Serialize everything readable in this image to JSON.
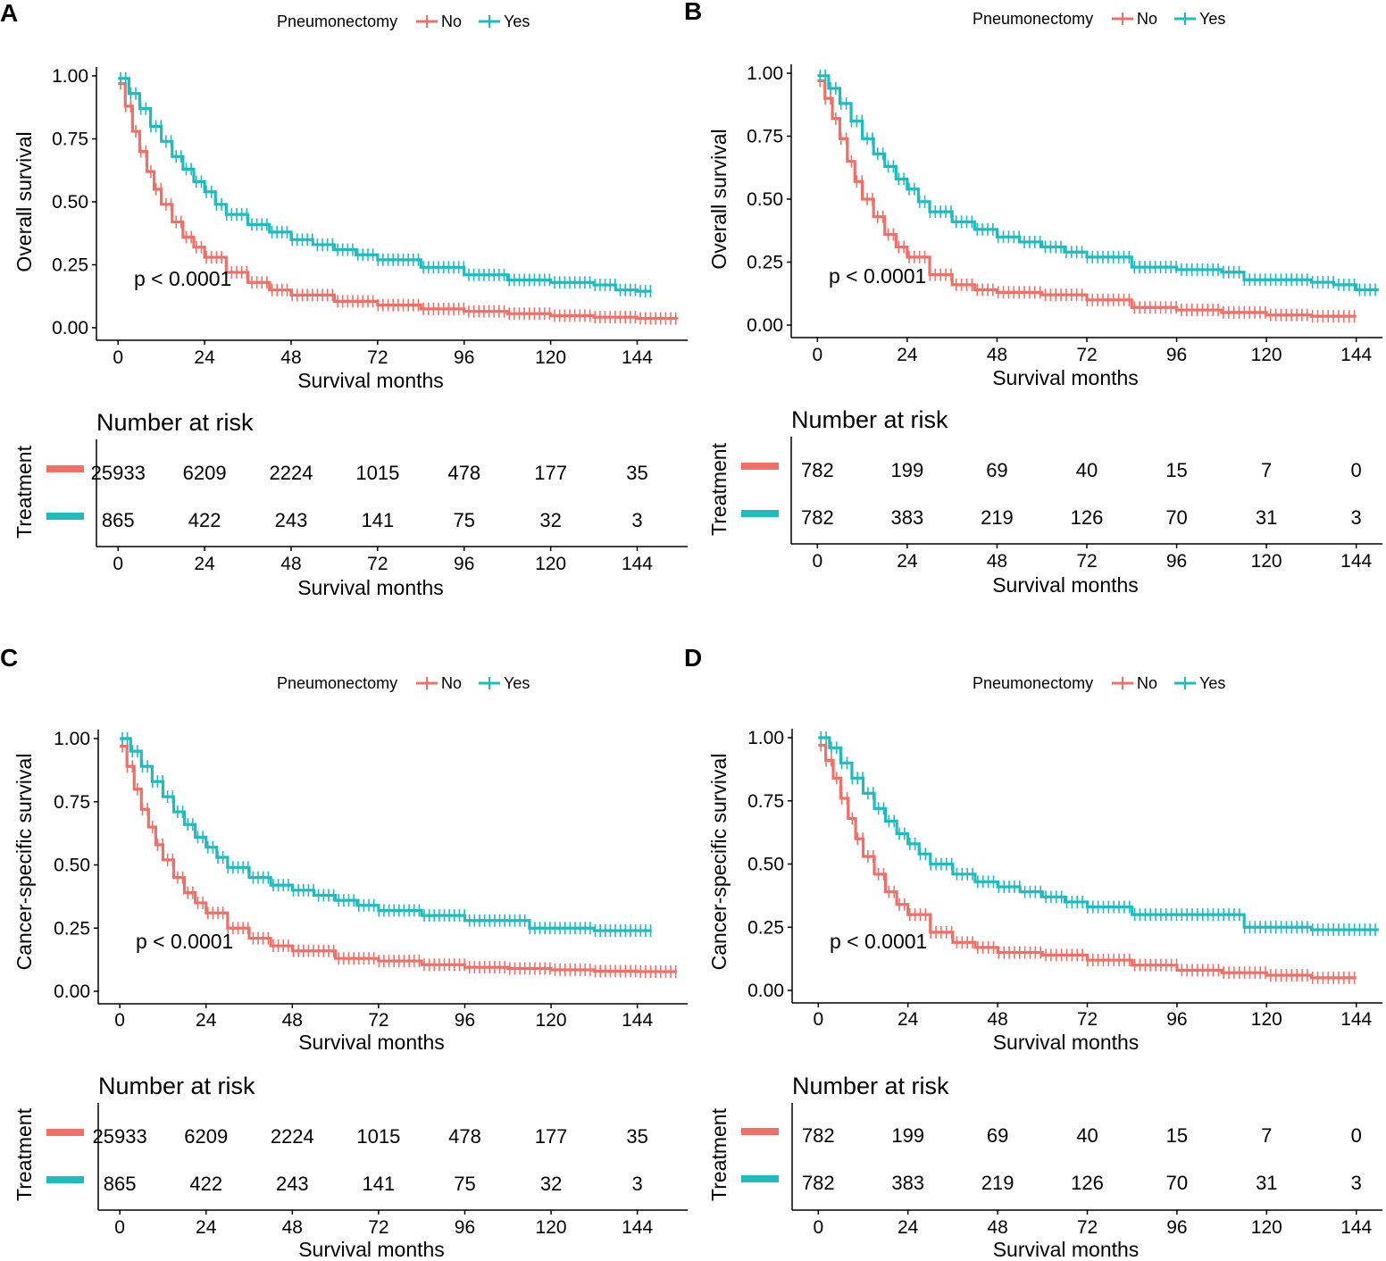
{
  "figure": {
    "legend_title": "Pneumonectomy",
    "risk_table_title": "Number at risk",
    "risk_table_ylabel": "Treatment",
    "colors": {
      "No": "#f07068",
      "Yes": "#1fbcbe"
    }
  },
  "chart_data": [
    {
      "panel": "A",
      "type": "line",
      "title": "",
      "xlabel": "Survival months",
      "ylabel": "Overall survival",
      "xlim": [
        -6,
        158
      ],
      "ylim": [
        0,
        1
      ],
      "xticks": [
        0,
        24,
        48,
        72,
        96,
        120,
        144
      ],
      "yticks": [
        "0.00",
        "0.25",
        "0.50",
        "0.75",
        "1.00"
      ],
      "annotation": "p < 0.0001",
      "legend": [
        "No",
        "Yes"
      ],
      "legend_position": "top",
      "series": [
        {
          "name": "No",
          "end_x": 155,
          "x": [
            0,
            2,
            4,
            6,
            8,
            10,
            12,
            15,
            18,
            21,
            24,
            30,
            36,
            42,
            48,
            60,
            72,
            84,
            96,
            108,
            120,
            132,
            144,
            155
          ],
          "y": [
            0.97,
            0.88,
            0.78,
            0.7,
            0.62,
            0.55,
            0.49,
            0.42,
            0.36,
            0.32,
            0.28,
            0.22,
            0.18,
            0.15,
            0.13,
            0.105,
            0.09,
            0.075,
            0.065,
            0.056,
            0.048,
            0.042,
            0.037,
            0.034
          ]
        },
        {
          "name": "Yes",
          "end_x": 148,
          "x": [
            0,
            3,
            6,
            9,
            12,
            15,
            18,
            21,
            24,
            27,
            30,
            36,
            42,
            48,
            54,
            60,
            66,
            72,
            84,
            96,
            108,
            120,
            132,
            138,
            144,
            148
          ],
          "y": [
            0.99,
            0.93,
            0.87,
            0.8,
            0.74,
            0.68,
            0.63,
            0.58,
            0.54,
            0.49,
            0.45,
            0.41,
            0.38,
            0.35,
            0.33,
            0.31,
            0.29,
            0.27,
            0.24,
            0.21,
            0.19,
            0.18,
            0.17,
            0.15,
            0.145,
            0.145
          ]
        }
      ],
      "risk_table": {
        "No": [
          "25933",
          "6209",
          "2224",
          "1015",
          "478",
          "177",
          "35"
        ],
        "Yes": [
          "865",
          "422",
          "243",
          "141",
          "75",
          "32",
          "3"
        ]
      }
    },
    {
      "panel": "B",
      "type": "line",
      "title": "",
      "xlabel": "Survival months",
      "ylabel": "Overall survival",
      "xlim": [
        -7,
        151
      ],
      "ylim": [
        0,
        1
      ],
      "xticks": [
        0,
        24,
        48,
        72,
        96,
        120,
        144
      ],
      "yticks": [
        "0.00",
        "0.25",
        "0.50",
        "0.75",
        "1.00"
      ],
      "annotation": "p < 0.0001",
      "legend": [
        "No",
        "Yes"
      ],
      "legend_position": "top",
      "series": [
        {
          "name": "No",
          "end_x": 144,
          "x": [
            0,
            2,
            4,
            6,
            8,
            10,
            12,
            15,
            18,
            21,
            24,
            30,
            36,
            42,
            48,
            60,
            72,
            84,
            96,
            108,
            120,
            132,
            144
          ],
          "y": [
            0.97,
            0.9,
            0.82,
            0.74,
            0.65,
            0.57,
            0.5,
            0.43,
            0.36,
            0.31,
            0.27,
            0.2,
            0.16,
            0.14,
            0.13,
            0.12,
            0.1,
            0.07,
            0.06,
            0.05,
            0.04,
            0.035,
            0.035
          ]
        },
        {
          "name": "Yes",
          "end_x": 150,
          "x": [
            0,
            3,
            6,
            9,
            12,
            15,
            18,
            21,
            24,
            27,
            30,
            36,
            42,
            48,
            54,
            60,
            66,
            72,
            84,
            96,
            108,
            114,
            120,
            132,
            138,
            144,
            150
          ],
          "y": [
            0.99,
            0.94,
            0.88,
            0.81,
            0.74,
            0.68,
            0.63,
            0.58,
            0.54,
            0.49,
            0.45,
            0.41,
            0.38,
            0.35,
            0.33,
            0.31,
            0.29,
            0.27,
            0.23,
            0.22,
            0.21,
            0.18,
            0.18,
            0.17,
            0.16,
            0.14,
            0.14
          ]
        }
      ],
      "risk_table": {
        "No": [
          "782",
          "199",
          "69",
          "40",
          "15",
          "7",
          "0"
        ],
        "Yes": [
          "782",
          "383",
          "219",
          "126",
          "70",
          "31",
          "3"
        ]
      }
    },
    {
      "panel": "C",
      "type": "line",
      "title": "",
      "xlabel": "Survival months",
      "ylabel": "Cancer-specific survival",
      "xlim": [
        -6,
        158
      ],
      "ylim": [
        0,
        1
      ],
      "xticks": [
        0,
        24,
        48,
        72,
        96,
        120,
        144
      ],
      "yticks": [
        "0.00",
        "0.25",
        "0.50",
        "0.75",
        "1.00"
      ],
      "annotation": "p < 0.0001",
      "legend": [
        "No",
        "Yes"
      ],
      "legend_position": "top",
      "series": [
        {
          "name": "No",
          "end_x": 155,
          "x": [
            0,
            2,
            4,
            6,
            8,
            10,
            12,
            15,
            18,
            21,
            24,
            30,
            36,
            42,
            48,
            60,
            72,
            84,
            96,
            108,
            120,
            132,
            144,
            155
          ],
          "y": [
            0.97,
            0.89,
            0.8,
            0.72,
            0.65,
            0.58,
            0.52,
            0.45,
            0.39,
            0.35,
            0.31,
            0.25,
            0.21,
            0.18,
            0.16,
            0.13,
            0.12,
            0.105,
            0.095,
            0.09,
            0.085,
            0.08,
            0.078,
            0.078
          ]
        },
        {
          "name": "Yes",
          "end_x": 148,
          "x": [
            0,
            3,
            6,
            9,
            12,
            15,
            18,
            21,
            24,
            27,
            30,
            36,
            42,
            48,
            54,
            60,
            66,
            72,
            84,
            96,
            108,
            114,
            120,
            132,
            144,
            148
          ],
          "y": [
            1.0,
            0.95,
            0.89,
            0.83,
            0.77,
            0.71,
            0.66,
            0.61,
            0.57,
            0.53,
            0.49,
            0.45,
            0.42,
            0.4,
            0.38,
            0.36,
            0.34,
            0.32,
            0.3,
            0.28,
            0.28,
            0.25,
            0.25,
            0.24,
            0.24,
            0.24
          ]
        }
      ],
      "risk_table": {
        "No": [
          "25933",
          "6209",
          "2224",
          "1015",
          "478",
          "177",
          "35"
        ],
        "Yes": [
          "865",
          "422",
          "243",
          "141",
          "75",
          "32",
          "3"
        ]
      }
    },
    {
      "panel": "D",
      "type": "line",
      "title": "",
      "xlabel": "Survival months",
      "ylabel": "Cancer-specific survival",
      "xlim": [
        -7,
        151
      ],
      "ylim": [
        0,
        1
      ],
      "xticks": [
        0,
        24,
        48,
        72,
        96,
        120,
        144
      ],
      "yticks": [
        "0.00",
        "0.25",
        "0.50",
        "0.75",
        "1.00"
      ],
      "annotation": "p < 0.0001",
      "legend": [
        "No",
        "Yes"
      ],
      "legend_position": "top",
      "series": [
        {
          "name": "No",
          "end_x": 144,
          "x": [
            0,
            2,
            4,
            6,
            8,
            10,
            12,
            15,
            18,
            21,
            24,
            30,
            36,
            42,
            48,
            60,
            72,
            84,
            96,
            108,
            120,
            132,
            144
          ],
          "y": [
            0.97,
            0.91,
            0.84,
            0.76,
            0.68,
            0.6,
            0.53,
            0.46,
            0.39,
            0.34,
            0.3,
            0.23,
            0.19,
            0.17,
            0.15,
            0.14,
            0.12,
            0.1,
            0.08,
            0.07,
            0.06,
            0.05,
            0.05
          ]
        },
        {
          "name": "Yes",
          "end_x": 150,
          "x": [
            0,
            3,
            6,
            9,
            12,
            15,
            18,
            21,
            24,
            27,
            30,
            36,
            42,
            48,
            54,
            60,
            66,
            72,
            84,
            96,
            108,
            114,
            120,
            132,
            144,
            150
          ],
          "y": [
            1.0,
            0.96,
            0.9,
            0.84,
            0.78,
            0.72,
            0.67,
            0.62,
            0.58,
            0.54,
            0.5,
            0.46,
            0.43,
            0.41,
            0.39,
            0.37,
            0.35,
            0.33,
            0.3,
            0.3,
            0.3,
            0.25,
            0.25,
            0.24,
            0.24,
            0.24
          ]
        }
      ],
      "risk_table": {
        "No": [
          "782",
          "199",
          "69",
          "40",
          "15",
          "7",
          "0"
        ],
        "Yes": [
          "782",
          "383",
          "219",
          "126",
          "70",
          "31",
          "3"
        ]
      }
    }
  ]
}
